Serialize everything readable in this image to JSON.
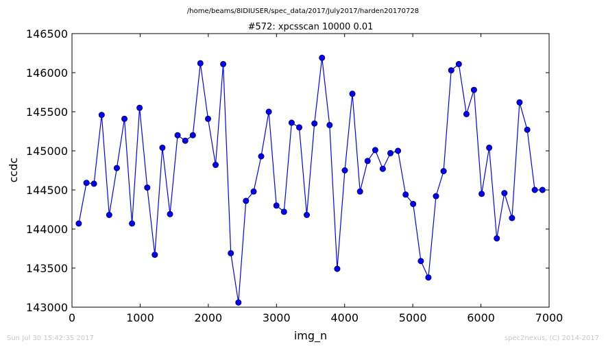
{
  "footer": {
    "timestamp": "Sun Jul 30 15:42:35 2017",
    "credit": "spec2nexus, (C) 2014-2017"
  },
  "chart_data": {
    "type": "line",
    "suptitle": "/home/beams/8IDIUSER/spec_data/2017/July2017/harden20170728",
    "title": "#572: xpcsscan 10000 0.01",
    "xlabel": "img_n",
    "ylabel": "ccdc",
    "xlim": [
      0,
      7000
    ],
    "ylim": [
      143000,
      146500
    ],
    "xticks": [
      0,
      1000,
      2000,
      3000,
      4000,
      5000,
      6000,
      7000
    ],
    "yticks": [
      143000,
      143500,
      144000,
      144500,
      145000,
      145500,
      146000,
      146500
    ],
    "grid": false,
    "series_color": "#0000ff",
    "marker": "circle",
    "x": [
      100,
      212,
      323,
      435,
      546,
      658,
      769,
      881,
      992,
      1104,
      1215,
      1327,
      1438,
      1550,
      1661,
      1773,
      1884,
      1996,
      2107,
      2219,
      2330,
      2442,
      2553,
      2665,
      2776,
      2888,
      2999,
      3111,
      3222,
      3334,
      3445,
      3557,
      3668,
      3780,
      3891,
      4003,
      4114,
      4226,
      4337,
      4449,
      4560,
      4672,
      4783,
      4895,
      5006,
      5118,
      5229,
      5341,
      5452,
      5564,
      5675,
      5787,
      5898,
      6010,
      6121,
      6233,
      6344,
      6456,
      6567,
      6679,
      6790,
      6902
    ],
    "y": [
      144070,
      144590,
      144580,
      145460,
      144180,
      144780,
      145410,
      144070,
      145550,
      144530,
      143670,
      145040,
      144190,
      145200,
      145130,
      145200,
      146120,
      145410,
      144820,
      146110,
      143690,
      143060,
      144360,
      144480,
      144930,
      145500,
      144300,
      144220,
      145360,
      145300,
      144180,
      145350,
      146190,
      145330,
      143490,
      144750,
      145730,
      144480,
      144870,
      145010,
      144770,
      144970,
      145000,
      144440,
      144320,
      143590,
      143380,
      144420,
      144740,
      146030,
      146110,
      145470,
      145780,
      144450,
      145040,
      143880,
      144460,
      144140,
      145620,
      145270,
      144500,
      144500
    ]
  }
}
